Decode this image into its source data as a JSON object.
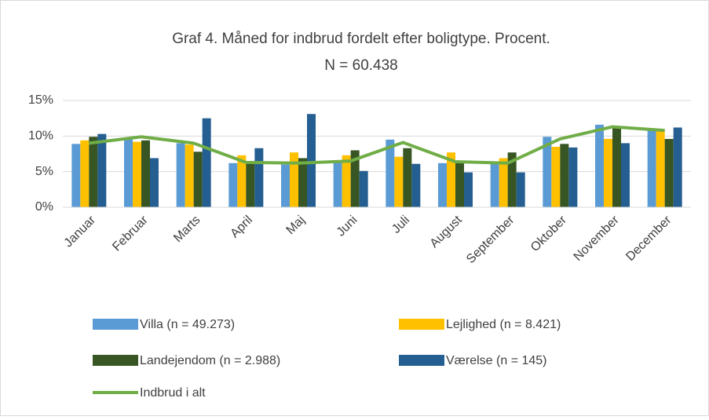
{
  "chart_data": {
    "type": "bar",
    "title": "Graf 4. Måned for indbrud fordelt efter boligtype. Procent.",
    "subtitle": "N = 60.438",
    "categories": [
      "Januar",
      "Februar",
      "Marts",
      "April",
      "Maj",
      "Juni",
      "Juli",
      "August",
      "September",
      "Oktober",
      "November",
      "December"
    ],
    "series": [
      {
        "name": "Villa (n = 49.273)",
        "color": "#5b9bd5",
        "type": "bar",
        "values": [
          8.9,
          9.8,
          9.0,
          6.2,
          6.0,
          6.5,
          9.5,
          6.2,
          6.2,
          9.9,
          11.6,
          10.8
        ]
      },
      {
        "name": "Lejlighed  (n = 8.421)",
        "color": "#ffc000",
        "type": "bar",
        "values": [
          9.4,
          9.2,
          8.8,
          7.3,
          7.7,
          7.3,
          7.1,
          7.7,
          6.9,
          8.5,
          9.6,
          10.8
        ]
      },
      {
        "name": "Landejendom (n = 2.988)",
        "color": "#375623",
        "type": "bar",
        "values": [
          9.9,
          9.4,
          7.8,
          6.3,
          6.9,
          8.0,
          8.3,
          6.4,
          7.7,
          8.9,
          11.1,
          9.6
        ]
      },
      {
        "name": "Værelse (n = 145)",
        "color": "#255e91",
        "type": "bar",
        "values": [
          10.3,
          6.9,
          12.5,
          8.3,
          13.1,
          5.1,
          6.1,
          4.9,
          4.9,
          8.4,
          9.0,
          11.2
        ]
      },
      {
        "name": "Indbrud i alt",
        "color": "#70ad47",
        "type": "line",
        "values": [
          9.0,
          9.9,
          9.0,
          6.3,
          6.2,
          6.5,
          9.1,
          6.4,
          6.2,
          9.6,
          11.3,
          10.8
        ]
      }
    ],
    "ylim": [
      0,
      15
    ],
    "yticks": [
      {
        "value": 0,
        "label": "0%"
      },
      {
        "value": 5,
        "label": "5%"
      },
      {
        "value": 10,
        "label": "10%"
      },
      {
        "value": 15,
        "label": "15%"
      }
    ],
    "grid": true,
    "legend": "bottom"
  }
}
